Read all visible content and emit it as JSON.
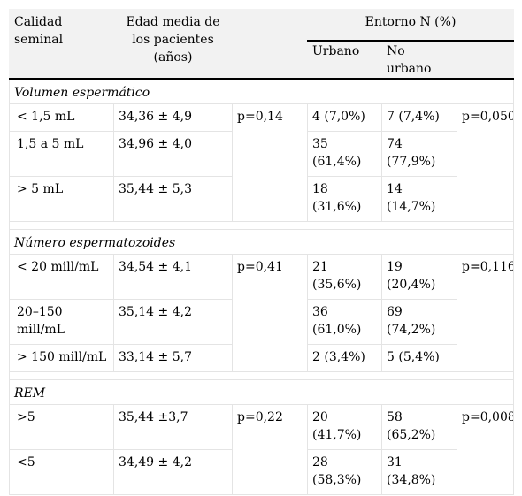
{
  "header": {
    "col_calidad": "Calidad seminal",
    "col_edad": "Edad media de los pacientes (años)",
    "col_entorno": "Entorno N (%)",
    "col_urbano": "Urbano",
    "col_no_urbano": "No urbano"
  },
  "sections": [
    {
      "title": "Volumen espermático",
      "p_edad": "p=0,14",
      "p_entorno": "p=0,050",
      "rows": [
        {
          "calidad": "< 1,5 mL",
          "edad": "34,36 ± 4,9",
          "urbano": "4 (7,0%)",
          "no_urbano": "7 (7,4%)"
        },
        {
          "calidad": "1,5 a 5 mL",
          "edad": "34,96 ± 4,0",
          "urbano": "35 (61,4%)",
          "no_urbano": "74 (77,9%)"
        },
        {
          "calidad": "> 5 mL",
          "edad": "35,44 ± 5,3",
          "urbano": "18 (31,6%)",
          "no_urbano": "14 (14,7%)"
        }
      ]
    },
    {
      "title": "Número espermatozoides",
      "p_edad": "p=0,41",
      "p_entorno": "p=0,116",
      "rows": [
        {
          "calidad": "< 20 mill/mL",
          "edad": "34,54 ± 4,1",
          "urbano": "21 (35,6%)",
          "no_urbano": "19 (20,4%)"
        },
        {
          "calidad": "20–150 mill/mL",
          "edad": "35,14 ± 4,2",
          "urbano": "36 (61,0%)",
          "no_urbano": "69 (74,2%)"
        },
        {
          "calidad": "> 150 mill/mL",
          "edad": "33,14 ± 5,7",
          "urbano": "2 (3,4%)",
          "no_urbano": "5 (5,4%)"
        }
      ]
    },
    {
      "title": "REM",
      "p_edad": "p=0,22",
      "p_entorno": "p=0,008",
      "rows": [
        {
          "calidad": ">5",
          "edad": "35,44 ±3,7",
          "urbano": "20 (41,7%)",
          "no_urbano": "58 (65,2%)"
        },
        {
          "calidad": "<5",
          "edad": "34,49 ± 4,2",
          "urbano": "28 (58,3%)",
          "no_urbano": "31 (34,8%)"
        }
      ]
    }
  ]
}
